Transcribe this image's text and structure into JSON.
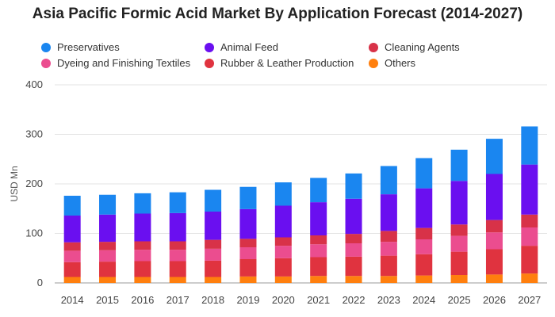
{
  "chart_data": {
    "type": "bar",
    "stacked": true,
    "title": "Asia Pacific Formic Acid Market By Application Forecast (2014-2027)",
    "xlabel": "",
    "ylabel": "USD Mn",
    "ylim": [
      0,
      400
    ],
    "yticks": [
      "0",
      "100",
      "200",
      "300",
      "400"
    ],
    "grid": true,
    "legend_position": "top",
    "categories": [
      "2014",
      "2015",
      "2016",
      "2017",
      "2018",
      "2019",
      "2020",
      "2021",
      "2022",
      "2023",
      "2024",
      "2025",
      "2026",
      "2027"
    ],
    "series": [
      {
        "name": "Others",
        "color": "#ff7f0e",
        "values": [
          12,
          12,
          12,
          12,
          12,
          13,
          13,
          14,
          14,
          14,
          15,
          16,
          17,
          19
        ]
      },
      {
        "name": "Rubber & Leather Production",
        "color": "#e0333f",
        "values": [
          30,
          31,
          32,
          32,
          33,
          35,
          37,
          38,
          39,
          41,
          43,
          47,
          51,
          56
        ]
      },
      {
        "name": "Dyeing and Finishing Textiles",
        "color": "#eb4d8f",
        "values": [
          23,
          23,
          23,
          23,
          24,
          24,
          25,
          26,
          27,
          28,
          30,
          32,
          34,
          37
        ]
      },
      {
        "name": "Cleaning Agents",
        "color": "#d83248",
        "values": [
          17,
          17,
          17,
          17,
          18,
          17,
          17,
          18,
          19,
          22,
          23,
          23,
          25,
          26
        ]
      },
      {
        "name": "Animal Feed",
        "color": "#6a0ff0",
        "values": [
          54,
          55,
          56,
          57,
          57,
          60,
          64,
          67,
          71,
          74,
          80,
          88,
          93,
          101
        ]
      },
      {
        "name": "Preservatives",
        "color": "#1a86f0",
        "values": [
          40,
          40,
          41,
          42,
          44,
          45,
          47,
          49,
          51,
          57,
          61,
          63,
          71,
          77
        ]
      }
    ]
  },
  "legend": {
    "items": [
      {
        "label": "Preservatives",
        "color": "#1a86f0",
        "name": "legend-preservatives"
      },
      {
        "label": "Animal Feed",
        "color": "#6a0ff0",
        "name": "legend-animal-feed"
      },
      {
        "label": "Cleaning Agents",
        "color": "#d83248",
        "name": "legend-cleaning-agents"
      },
      {
        "label": "Dyeing and Finishing Textiles",
        "color": "#eb4d8f",
        "name": "legend-dyeing-textiles"
      },
      {
        "label": "Rubber & Leather Production",
        "color": "#e0333f",
        "name": "legend-rubber-leather"
      },
      {
        "label": "Others",
        "color": "#ff7f0e",
        "name": "legend-others"
      }
    ]
  }
}
